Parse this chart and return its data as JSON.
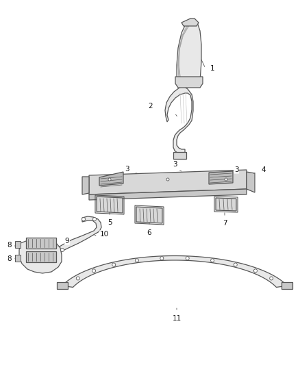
{
  "background_color": "#ffffff",
  "line_color": "#555555",
  "label_color": "#111111",
  "fig_width": 4.38,
  "fig_height": 5.33,
  "dpi": 100
}
